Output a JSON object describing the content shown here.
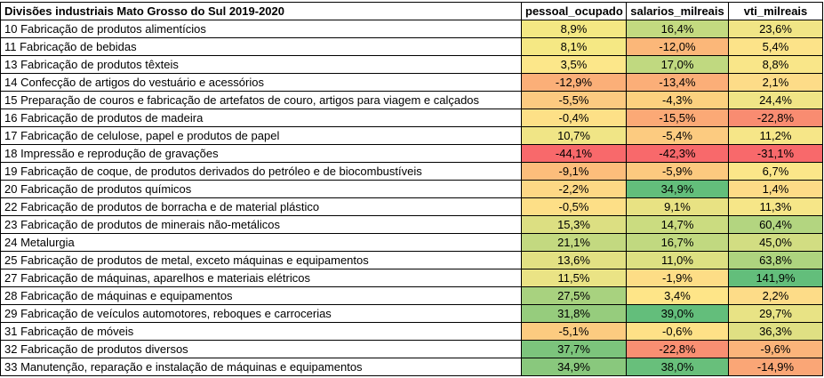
{
  "table": {
    "headers": [
      "Divisões industriais Mato Grosso do Sul 2019-2020",
      "pessoal_ocupado",
      "salarios_milreais",
      "vti_milreais"
    ],
    "rows": [
      {
        "label": "10 Fabricação de produtos alimentícios",
        "values": [
          "8,9%",
          "16,4%",
          "23,6%"
        ],
        "colors": [
          "#F4E883",
          "#C3DA80",
          "#F0E586"
        ]
      },
      {
        "label": "11 Fabricação de bebidas",
        "values": [
          "8,1%",
          "-12,0%",
          "5,4%"
        ],
        "colors": [
          "#F5E884",
          "#FBB779",
          "#FCE389"
        ]
      },
      {
        "label": "13 Fabricação de produtos têxteis",
        "values": [
          "3,5%",
          "17,0%",
          "8,8%"
        ],
        "colors": [
          "#FCE78A",
          "#C0D980",
          "#F9E689"
        ]
      },
      {
        "label": "14 Confecção de artigos do vestuário e acessórios",
        "values": [
          "-12,9%",
          "-13,4%",
          "2,1%"
        ],
        "colors": [
          "#FBAF78",
          "#FBAE78",
          "#FDDC88"
        ]
      },
      {
        "label": "15 Preparação de couros e fabricação de artefatos de couro, artigos para viagem e calçados",
        "values": [
          "-5,5%",
          "-4,3%",
          "24,4%"
        ],
        "colors": [
          "#FCCA80",
          "#FCD17F",
          "#F0E586"
        ]
      },
      {
        "label": "16 Fabricação de produtos de madeira",
        "values": [
          "-0,4%",
          "-15,5%",
          "-22,8%"
        ],
        "colors": [
          "#FDE087",
          "#FBA976",
          "#F98C71"
        ]
      },
      {
        "label": "17 Fabricação de celulose, papel e produtos de papel",
        "values": [
          "10,7%",
          "-5,4%",
          "11,2%"
        ],
        "colors": [
          "#F0E586",
          "#FCCB80",
          "#F6E688"
        ]
      },
      {
        "label": "18 Impressão e reprodução de gravações",
        "values": [
          "-44,1%",
          "-42,3%",
          "-31,1%"
        ],
        "colors": [
          "#F8696B",
          "#F8696B",
          "#F8696B"
        ]
      },
      {
        "label": "19 Fabricação de coque, de produtos derivados do petróleo e de biocombustíveis",
        "values": [
          "-9,1%",
          "-5,9%",
          "6,7%"
        ],
        "colors": [
          "#FCBD7B",
          "#FCC97F",
          "#FBE689"
        ]
      },
      {
        "label": "20 Fabricação de produtos químicos",
        "values": [
          "-2,2%",
          "34,9%",
          "1,4%"
        ],
        "colors": [
          "#FDD885",
          "#63BE7B",
          "#FDDB87"
        ]
      },
      {
        "label": "22 Fabricação de produtos de borracha e de material plástico",
        "values": [
          "-0,5%",
          "9,1%",
          "11,3%"
        ],
        "colors": [
          "#FDDF87",
          "#E8E283",
          "#F6E688"
        ]
      },
      {
        "label": "23 Fabricação de produtos de minerais não-metálicos",
        "values": [
          "15,3%",
          "14,7%",
          "60,4%"
        ],
        "colors": [
          "#DCDF82",
          "#CBDC80",
          "#B3D580"
        ]
      },
      {
        "label": "24 Metalurgia",
        "values": [
          "21,1%",
          "16,7%",
          "45,0%"
        ],
        "colors": [
          "#C3D980",
          "#C1D980",
          "#D2DD82"
        ]
      },
      {
        "label": "25 Fabricação de produtos de metal, exceto máquinas e equipamentos",
        "values": [
          "13,6%",
          "11,0%",
          "63,8%"
        ],
        "colors": [
          "#E2E083",
          "#DDE082",
          "#AED47F"
        ]
      },
      {
        "label": "27 Fabricação de máquinas, aparelhos e materiais elétricos",
        "values": [
          "11,5%",
          "-1,9%",
          "141,9%"
        ],
        "colors": [
          "#EAE385",
          "#FDDD86",
          "#63BE7B"
        ]
      },
      {
        "label": "28 Fabricação de máquinas e equipamentos",
        "values": [
          "27,5%",
          "3,4%",
          "2,2%"
        ],
        "colors": [
          "#A8D27F",
          "#FEE588",
          "#FDDC88"
        ]
      },
      {
        "label": "29 Fabricação de veículos automotores, reboques e carrocerias",
        "values": [
          "31,8%",
          "39,0%",
          "29,7%"
        ],
        "colors": [
          "#96CC7D",
          "#63BE7B",
          "#E8E385"
        ]
      },
      {
        "label": "31 Fabricação de móveis",
        "values": [
          "-5,1%",
          "-0,6%",
          "36,3%"
        ],
        "colors": [
          "#FCCB80",
          "#FEE187",
          "#DFE083"
        ]
      },
      {
        "label": "32 Fabricação de produtos diversos",
        "values": [
          "37,7%",
          "-22,8%",
          "-9,6%"
        ],
        "colors": [
          "#7CC47C",
          "#F98F72",
          "#FBB47A"
        ]
      },
      {
        "label": "33 Manutenção, reparação e instalação de máquinas e equipamentos",
        "values": [
          "34,9%",
          "38,0%",
          "-14,9%"
        ],
        "colors": [
          "#89C87D",
          "#68BF7B",
          "#FAA676"
        ]
      }
    ]
  }
}
